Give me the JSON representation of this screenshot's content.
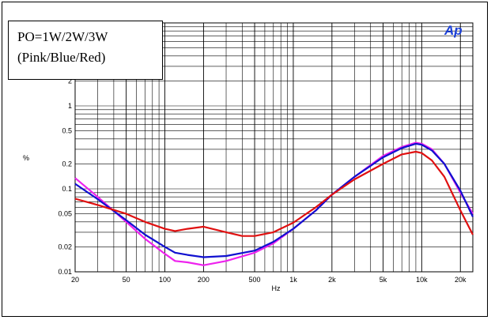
{
  "chart_data": {
    "type": "line",
    "xlabel": "Hz",
    "ylabel": "%",
    "xscale": "log",
    "yscale": "log",
    "xlim": [
      20,
      25000
    ],
    "ylim": [
      0.01,
      10
    ],
    "xticks": [
      {
        "v": 20,
        "label": "20"
      },
      {
        "v": 50,
        "label": "50"
      },
      {
        "v": 100,
        "label": "100"
      },
      {
        "v": 200,
        "label": "200"
      },
      {
        "v": 500,
        "label": "500"
      },
      {
        "v": 1000,
        "label": "1k"
      },
      {
        "v": 2000,
        "label": "2k"
      },
      {
        "v": 5000,
        "label": "5k"
      },
      {
        "v": 10000,
        "label": "10k"
      },
      {
        "v": 20000,
        "label": "20k"
      }
    ],
    "yticks": [
      {
        "v": 0.01,
        "label": "0.01"
      },
      {
        "v": 0.02,
        "label": "0.02"
      },
      {
        "v": 0.05,
        "label": "0.05"
      },
      {
        "v": 0.1,
        "label": "0.1"
      },
      {
        "v": 0.2,
        "label": "0.2"
      },
      {
        "v": 0.5,
        "label": "0.5"
      },
      {
        "v": 1,
        "label": "1"
      },
      {
        "v": 2,
        "label": "2"
      }
    ],
    "grid": true,
    "legend_lines": [
      "PO=1W/2W/3W",
      "(Pink/Blue/Red)"
    ],
    "logo": "Ap",
    "series": [
      {
        "color": "#ee22ee",
        "points": [
          [
            20,
            0.135
          ],
          [
            30,
            0.08
          ],
          [
            50,
            0.04
          ],
          [
            70,
            0.025
          ],
          [
            100,
            0.0165
          ],
          [
            120,
            0.0135
          ],
          [
            150,
            0.013
          ],
          [
            200,
            0.012
          ],
          [
            300,
            0.0135
          ],
          [
            500,
            0.017
          ],
          [
            700,
            0.022
          ],
          [
            1000,
            0.033
          ],
          [
            1500,
            0.055
          ],
          [
            2000,
            0.085
          ],
          [
            3000,
            0.14
          ],
          [
            5000,
            0.25
          ],
          [
            7000,
            0.32
          ],
          [
            9000,
            0.36
          ],
          [
            10000,
            0.35
          ],
          [
            12000,
            0.3
          ],
          [
            15000,
            0.2
          ],
          [
            20000,
            0.09
          ],
          [
            25000,
            0.05
          ]
        ]
      },
      {
        "color": "#1010d0",
        "points": [
          [
            20,
            0.115
          ],
          [
            30,
            0.075
          ],
          [
            50,
            0.042
          ],
          [
            70,
            0.028
          ],
          [
            100,
            0.02
          ],
          [
            120,
            0.017
          ],
          [
            150,
            0.016
          ],
          [
            200,
            0.015
          ],
          [
            300,
            0.0155
          ],
          [
            500,
            0.018
          ],
          [
            700,
            0.023
          ],
          [
            1000,
            0.033
          ],
          [
            1500,
            0.055
          ],
          [
            2000,
            0.085
          ],
          [
            3000,
            0.14
          ],
          [
            5000,
            0.24
          ],
          [
            7000,
            0.31
          ],
          [
            9000,
            0.35
          ],
          [
            10000,
            0.34
          ],
          [
            12000,
            0.29
          ],
          [
            15000,
            0.2
          ],
          [
            20000,
            0.095
          ],
          [
            25000,
            0.046
          ]
        ]
      },
      {
        "color": "#e01010",
        "points": [
          [
            20,
            0.076
          ],
          [
            30,
            0.064
          ],
          [
            50,
            0.05
          ],
          [
            70,
            0.04
          ],
          [
            100,
            0.033
          ],
          [
            120,
            0.031
          ],
          [
            150,
            0.033
          ],
          [
            200,
            0.035
          ],
          [
            300,
            0.03
          ],
          [
            400,
            0.027
          ],
          [
            500,
            0.027
          ],
          [
            700,
            0.03
          ],
          [
            1000,
            0.039
          ],
          [
            1500,
            0.06
          ],
          [
            2000,
            0.085
          ],
          [
            3000,
            0.13
          ],
          [
            5000,
            0.2
          ],
          [
            7000,
            0.26
          ],
          [
            9000,
            0.28
          ],
          [
            10000,
            0.27
          ],
          [
            12000,
            0.22
          ],
          [
            15000,
            0.14
          ],
          [
            20000,
            0.055
          ],
          [
            25000,
            0.028
          ]
        ]
      }
    ]
  }
}
